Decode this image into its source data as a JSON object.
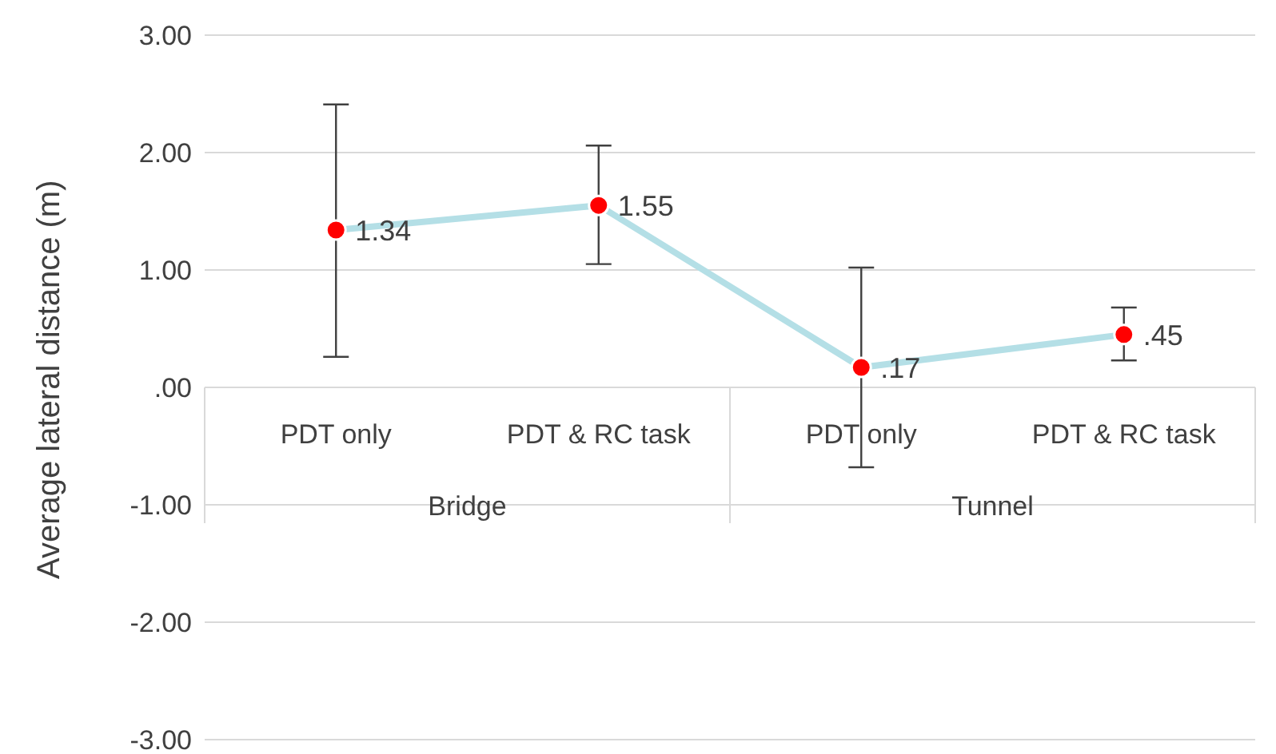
{
  "chart_data": {
    "type": "line",
    "ylabel": "Average lateral distance (m)",
    "categories": [
      "PDT only",
      "PDT & RC task",
      "PDT only",
      "PDT & RC task"
    ],
    "annotations": [
      "Bridge",
      "Tunnel"
    ],
    "series": [
      {
        "color": "#b4dfe6",
        "values": [
          1.34,
          1.55,
          0.17,
          0.45
        ],
        "errors": [
          [
            0.26,
            2.41
          ],
          [
            1.05,
            2.06
          ],
          [
            -0.68,
            1.02
          ],
          [
            0.23,
            0.68
          ]
        ],
        "value_labels": [
          "1.34",
          "1.55",
          ".17",
          ".45"
        ]
      }
    ],
    "marker": "circle",
    "grid": "y",
    "legend": false,
    "ylim": [
      -3,
      3
    ],
    "yticks": [
      {
        "value": -3,
        "label": "-3.00"
      },
      {
        "value": -2,
        "label": "-2.00"
      },
      {
        "value": -1,
        "label": "-1.00"
      },
      {
        "value": 0,
        "label": ".00"
      },
      {
        "value": 1,
        "label": "1.00"
      },
      {
        "value": 2,
        "label": "2.00"
      },
      {
        "value": 3,
        "label": "3.00"
      }
    ]
  }
}
